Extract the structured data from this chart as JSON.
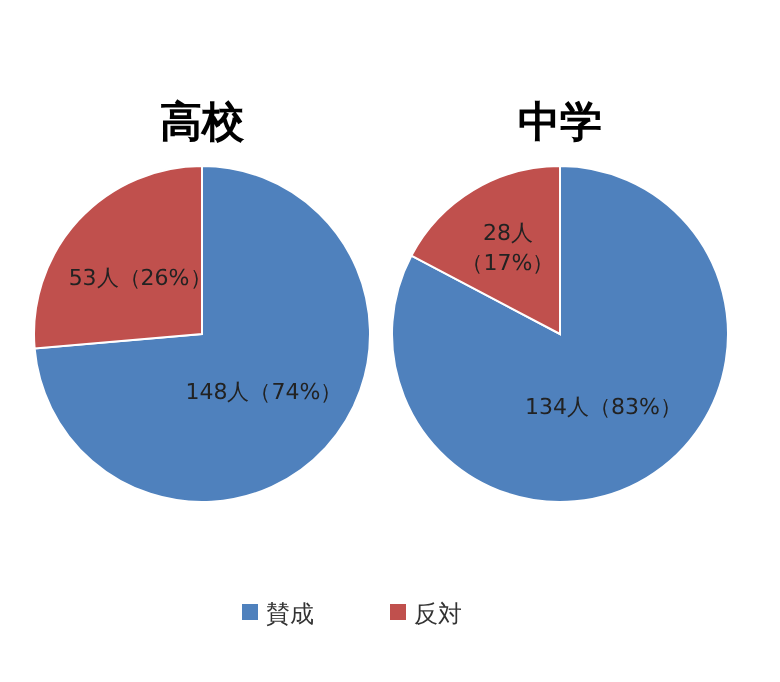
{
  "chart_data": [
    {
      "type": "pie",
      "title": "高校",
      "categories": [
        "賛成",
        "反対"
      ],
      "values": [
        148,
        53
      ],
      "colors": [
        "#4f81bd",
        "#c0504d"
      ],
      "value_labels": [
        "148人（74%）",
        "53人（26%）"
      ],
      "legend": "bottom"
    },
    {
      "type": "pie",
      "title": "中学",
      "categories": [
        null,
        null
      ],
      "values": [
        134,
        28
      ],
      "colors": [
        "#4f81bd",
        "#c0504d"
      ],
      "value_labels": [
        "134人（83%）",
        "28人（17%）"
      ]
    }
  ]
}
